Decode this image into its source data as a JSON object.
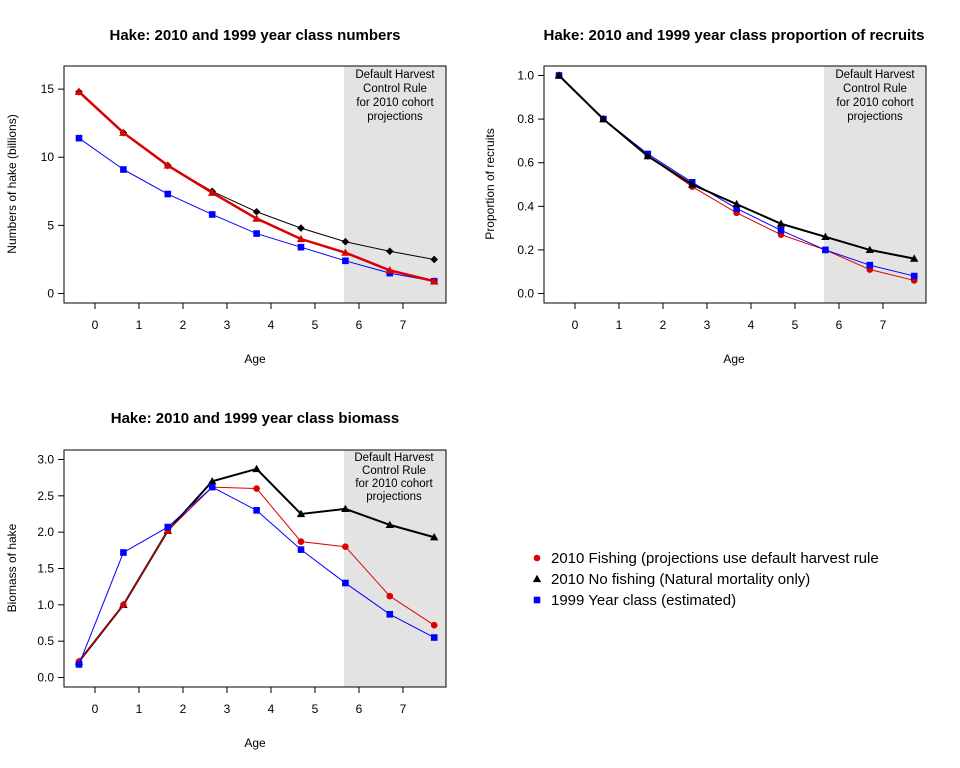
{
  "chart_data": [
    {
      "type": "line",
      "title": "Hake: 2010 and 1999 year class numbers",
      "xlabel": "Age",
      "ylabel": "Numbers of hake (billions)",
      "ylim": [
        0,
        16
      ],
      "x_tick_labels": [
        "0",
        "1",
        "2",
        "3",
        "4",
        "5",
        "6",
        "7"
      ],
      "y_ticks": [
        0,
        5,
        10,
        15
      ],
      "y_tick_labels": [
        "0",
        "5",
        "10",
        "15"
      ],
      "shaded_region": {
        "label_lines": [
          "Default Harvest",
          "Control Rule",
          "for 2010 cohort",
          "projections"
        ]
      },
      "series": [
        {
          "name": "2010 No fishing (Natural mortality only)",
          "color": "#000000",
          "marker": "diamond",
          "lw": 1,
          "x": [
            0,
            1,
            2,
            3,
            4,
            5,
            6,
            7,
            8
          ],
          "y": [
            14.8,
            11.8,
            9.4,
            7.5,
            6.0,
            4.8,
            3.8,
            3.1,
            2.5
          ]
        },
        {
          "name": "1999 Year class (estimated)",
          "color": "#0000FF",
          "marker": "square",
          "lw": 1,
          "x": [
            0,
            1,
            2,
            3,
            4,
            5,
            6,
            7,
            8
          ],
          "y": [
            11.4,
            9.1,
            7.3,
            5.8,
            4.4,
            3.4,
            2.4,
            1.5,
            0.9
          ]
        },
        {
          "name": "2010 Fishing (projections use default harvest rule",
          "color": "#DD0000",
          "marker": "triangle",
          "lw": 2.5,
          "x": [
            0,
            1,
            2,
            3,
            4,
            5,
            6,
            7,
            8
          ],
          "y": [
            14.8,
            11.8,
            9.4,
            7.4,
            5.5,
            4.0,
            3.0,
            1.7,
            0.9
          ]
        }
      ]
    },
    {
      "type": "line",
      "title": "Hake: 2010 and 1999 year class proportion of recruits",
      "xlabel": "Age",
      "ylabel": "Proportion of recruits",
      "ylim": [
        0,
        1.0
      ],
      "x_tick_labels": [
        "0",
        "1",
        "2",
        "3",
        "4",
        "5",
        "6",
        "7"
      ],
      "y_ticks": [
        0.0,
        0.2,
        0.4,
        0.6,
        0.8,
        1.0
      ],
      "y_tick_labels": [
        "0.0",
        "0.2",
        "0.4",
        "0.6",
        "0.8",
        "1.0"
      ],
      "shaded_region": {
        "label_lines": [
          "Default Harvest",
          "Control Rule",
          "for 2010 cohort",
          "projections"
        ]
      },
      "series": [
        {
          "name": "2010 Fishing (projections use default harvest rule",
          "color": "#DD0000",
          "marker": "circle",
          "lw": 1,
          "x": [
            0,
            1,
            2,
            3,
            4,
            5,
            6,
            7,
            8
          ],
          "y": [
            1.0,
            0.8,
            0.63,
            0.49,
            0.37,
            0.27,
            0.2,
            0.11,
            0.06
          ]
        },
        {
          "name": "1999 Year class (estimated)",
          "color": "#0000FF",
          "marker": "square",
          "lw": 1,
          "x": [
            0,
            1,
            2,
            3,
            4,
            5,
            6,
            7,
            8
          ],
          "y": [
            1.0,
            0.8,
            0.64,
            0.51,
            0.39,
            0.29,
            0.2,
            0.13,
            0.08
          ]
        },
        {
          "name": "2010 No fishing (Natural mortality only)",
          "color": "#000000",
          "marker": "triangle",
          "lw": 2,
          "x": [
            0,
            1,
            2,
            3,
            4,
            5,
            6,
            7,
            8
          ],
          "y": [
            1.0,
            0.8,
            0.63,
            0.5,
            0.41,
            0.32,
            0.26,
            0.2,
            0.16
          ]
        }
      ]
    },
    {
      "type": "line",
      "title": "Hake: 2010 and 1999 year class biomass",
      "xlabel": "Age",
      "ylabel": "Biomass of hake",
      "ylim": [
        0,
        3.0
      ],
      "x_tick_labels": [
        "0",
        "1",
        "2",
        "3",
        "4",
        "5",
        "6",
        "7"
      ],
      "y_ticks": [
        0.0,
        0.5,
        1.0,
        1.5,
        2.0,
        2.5,
        3.0
      ],
      "y_tick_labels": [
        "0.0",
        "0.5",
        "1.0",
        "1.5",
        "2.0",
        "2.5",
        "3.0"
      ],
      "shaded_region": {
        "label_lines": [
          "Default Harvest",
          "Control Rule",
          "for 2010 cohort",
          "projections"
        ]
      },
      "series": [
        {
          "name": "2010 No fishing (Natural mortality only)",
          "color": "#000000",
          "marker": "triangle",
          "lw": 2,
          "x": [
            0,
            1,
            2,
            3,
            4,
            5,
            6,
            7,
            8
          ],
          "y": [
            0.22,
            1.0,
            2.02,
            2.7,
            2.87,
            2.25,
            2.32,
            2.1,
            1.93
          ]
        },
        {
          "name": "2010 Fishing (projections use default harvest rule",
          "color": "#DD0000",
          "marker": "circle",
          "lw": 1,
          "x": [
            0,
            1,
            2,
            3,
            4,
            5,
            6,
            7,
            8
          ],
          "y": [
            0.22,
            1.0,
            2.02,
            2.62,
            2.6,
            1.87,
            1.8,
            1.12,
            0.72
          ]
        },
        {
          "name": "1999 Year class (estimated)",
          "color": "#0000FF",
          "marker": "square",
          "lw": 1,
          "x": [
            0,
            1,
            2,
            3,
            4,
            5,
            6,
            7,
            8
          ],
          "y": [
            0.18,
            1.72,
            2.07,
            2.62,
            2.3,
            1.76,
            1.3,
            0.87,
            0.55
          ]
        }
      ]
    }
  ],
  "legend": {
    "items": [
      {
        "label": "2010 Fishing (projections use default harvest rule",
        "color": "#DD0000",
        "marker": "circle"
      },
      {
        "label": "2010 No fishing (Natural mortality only)",
        "color": "#000000",
        "marker": "triangle"
      },
      {
        "label": "1999 Year class (estimated)",
        "color": "#0000FF",
        "marker": "square"
      }
    ]
  }
}
